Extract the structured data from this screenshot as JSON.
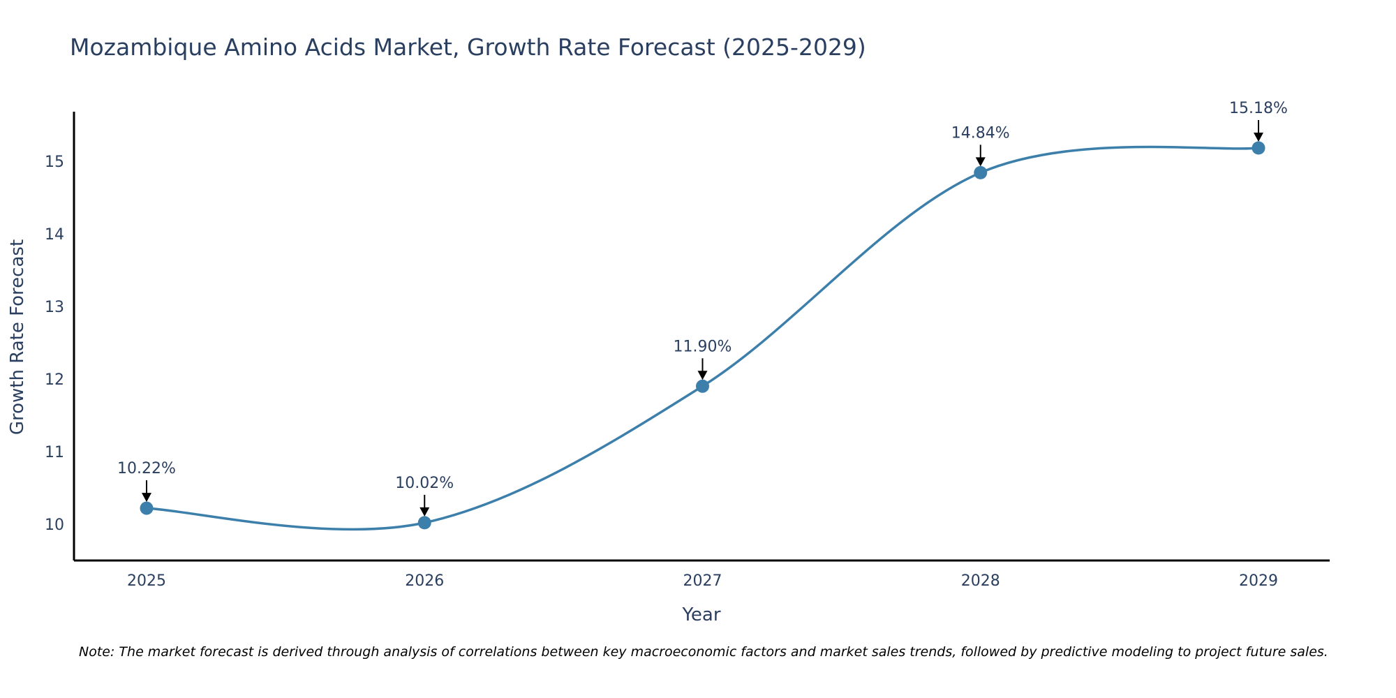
{
  "chart_data": {
    "type": "line",
    "title": "Mozambique Amino Acids Market, Growth Rate Forecast (2025-2029)",
    "xlabel": "Year",
    "ylabel": "Growth Rate Forecast",
    "categories": [
      "2025",
      "2026",
      "2027",
      "2028",
      "2029"
    ],
    "series": [
      {
        "name": "Growth Rate Forecast",
        "values": [
          10.22,
          10.02,
          11.9,
          14.84,
          15.18
        ],
        "labels": [
          "10.22%",
          "10.02%",
          "11.90%",
          "14.84%",
          "15.18%"
        ]
      }
    ],
    "yticks": [
      "10",
      "11",
      "12",
      "13",
      "14",
      "15"
    ],
    "ylim": [
      9.5,
      15.68
    ],
    "grid": false,
    "line_shape": "smooth",
    "color": "#3d7fab",
    "note": "Note: The market forecast is derived through analysis of correlations between key macroeconomic factors and market sales trends, followed by predictive modeling to project future sales."
  }
}
